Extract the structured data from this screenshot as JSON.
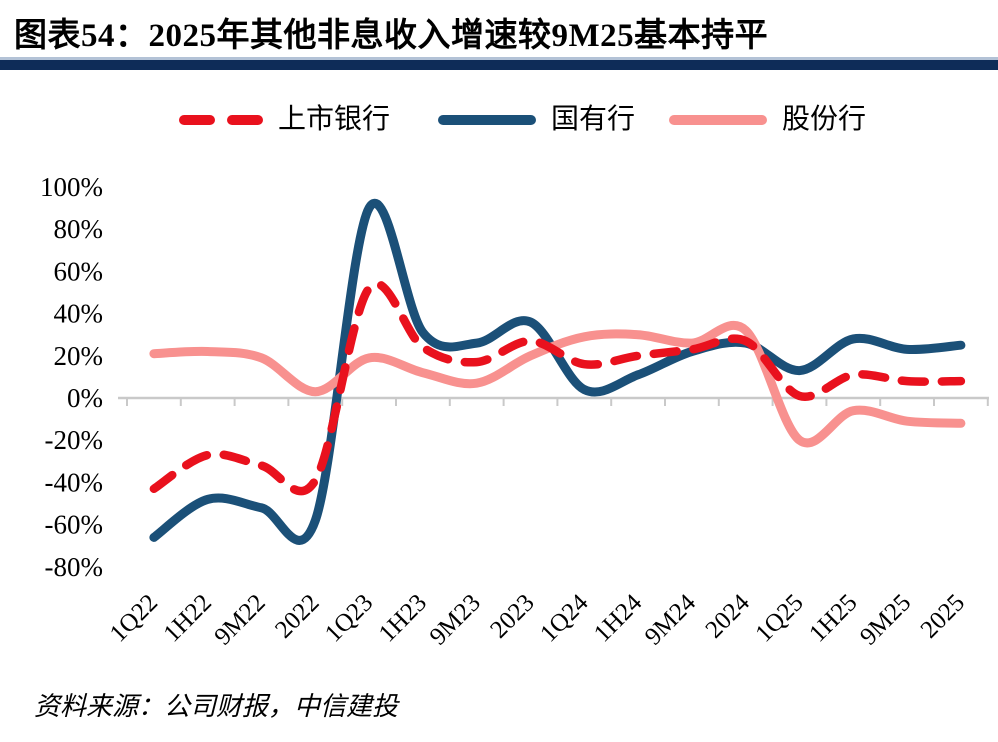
{
  "title": "图表54：2025年其他非息收入增速较9M25基本持平",
  "source": "资料来源：公司财报，中信建投",
  "colors": {
    "title_bar": "#0e2c58",
    "title_bar_top_edge": "#b3c2d6",
    "axis": "#c9c9c9",
    "text": "#000000",
    "listed_red": "#e9111d",
    "state_blue": "#1b5078",
    "joint_pink": "#f8918f"
  },
  "chart_data": {
    "type": "line",
    "title": "2025年其他非息收入增速较9M25基本持平",
    "categories": [
      "1Q22",
      "1H22",
      "9M22",
      "2022",
      "1Q23",
      "1H23",
      "9M23",
      "2023",
      "1Q24",
      "1H24",
      "9M24",
      "2024",
      "1Q25",
      "1H25",
      "9M25",
      "2025"
    ],
    "series": [
      {
        "name": "上市银行",
        "style": "dashed",
        "color": "#e9111d",
        "values": [
          -43,
          -27,
          -32,
          -39,
          52,
          24,
          17,
          27,
          16,
          20,
          23,
          27,
          1,
          11,
          8,
          8
        ]
      },
      {
        "name": "国有行",
        "style": "solid",
        "color": "#1b5078",
        "values": [
          -66,
          -48,
          -52,
          -58,
          90,
          31,
          26,
          36,
          4,
          11,
          22,
          26,
          13,
          28,
          23,
          25
        ]
      },
      {
        "name": "股份行",
        "style": "solid",
        "color": "#f8918f",
        "values": [
          21,
          22,
          19,
          3,
          19,
          12,
          7,
          20,
          29,
          30,
          26,
          32,
          -20,
          -6,
          -11,
          -12
        ]
      }
    ],
    "unit": "%",
    "ylim": [
      -80,
      100
    ],
    "yticks": {
      "values": [
        100,
        80,
        60,
        40,
        20,
        0,
        -20,
        -40,
        -60,
        -80
      ],
      "labels": [
        "100%",
        "80%",
        "60%",
        "40%",
        "20%",
        "0%",
        "-20%",
        "-40%",
        "-60%",
        "-80%"
      ]
    },
    "grid": "off",
    "zero_axis_line": true,
    "legend_position": "top",
    "smooth": true
  }
}
